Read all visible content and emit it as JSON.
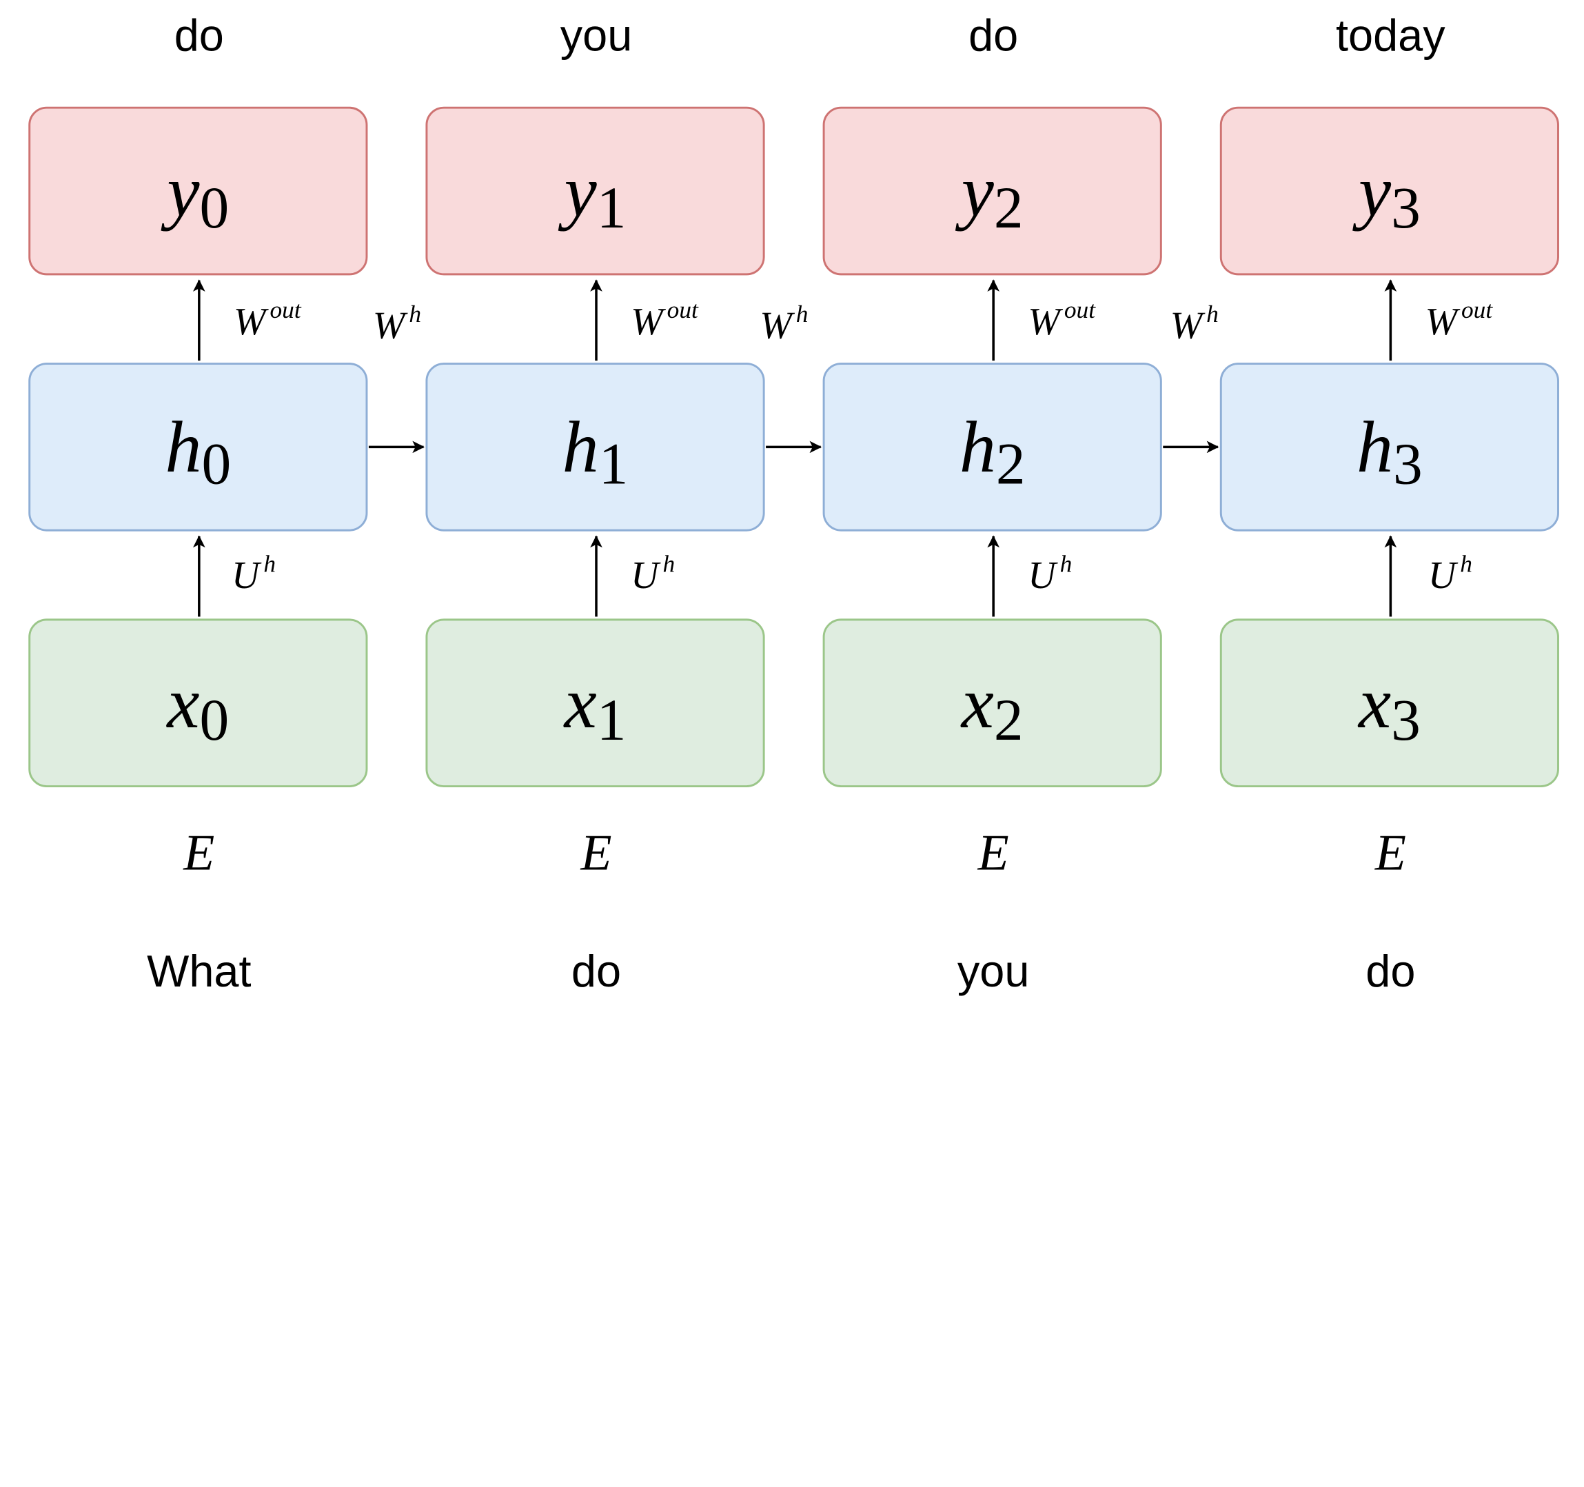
{
  "output_words": [
    "do",
    "you",
    "do",
    "today"
  ],
  "input_words": [
    "What",
    "do",
    "you",
    "do"
  ],
  "outputs": [
    {
      "symbol": "y",
      "index": "0"
    },
    {
      "symbol": "y",
      "index": "1"
    },
    {
      "symbol": "y",
      "index": "2"
    },
    {
      "symbol": "y",
      "index": "3"
    }
  ],
  "hidden": [
    {
      "symbol": "h",
      "index": "0"
    },
    {
      "symbol": "h",
      "index": "1"
    },
    {
      "symbol": "h",
      "index": "2"
    },
    {
      "symbol": "h",
      "index": "3"
    }
  ],
  "inputs": [
    {
      "symbol": "x",
      "index": "0"
    },
    {
      "symbol": "x",
      "index": "1"
    },
    {
      "symbol": "x",
      "index": "2"
    },
    {
      "symbol": "x",
      "index": "3"
    }
  ],
  "weights": {
    "output": {
      "base": "W",
      "sup": "out"
    },
    "recurrent": {
      "base": "W",
      "sup": "h"
    },
    "input": {
      "base": "U",
      "sup": "h"
    },
    "embedding": "E"
  },
  "colors": {
    "output_fill": "#f9dadb",
    "output_border": "#ce7372",
    "hidden_fill": "#deecfa",
    "hidden_border": "#8eaed6",
    "input_fill": "#dfede0",
    "input_border": "#9bc689",
    "arrow": "#000000"
  }
}
